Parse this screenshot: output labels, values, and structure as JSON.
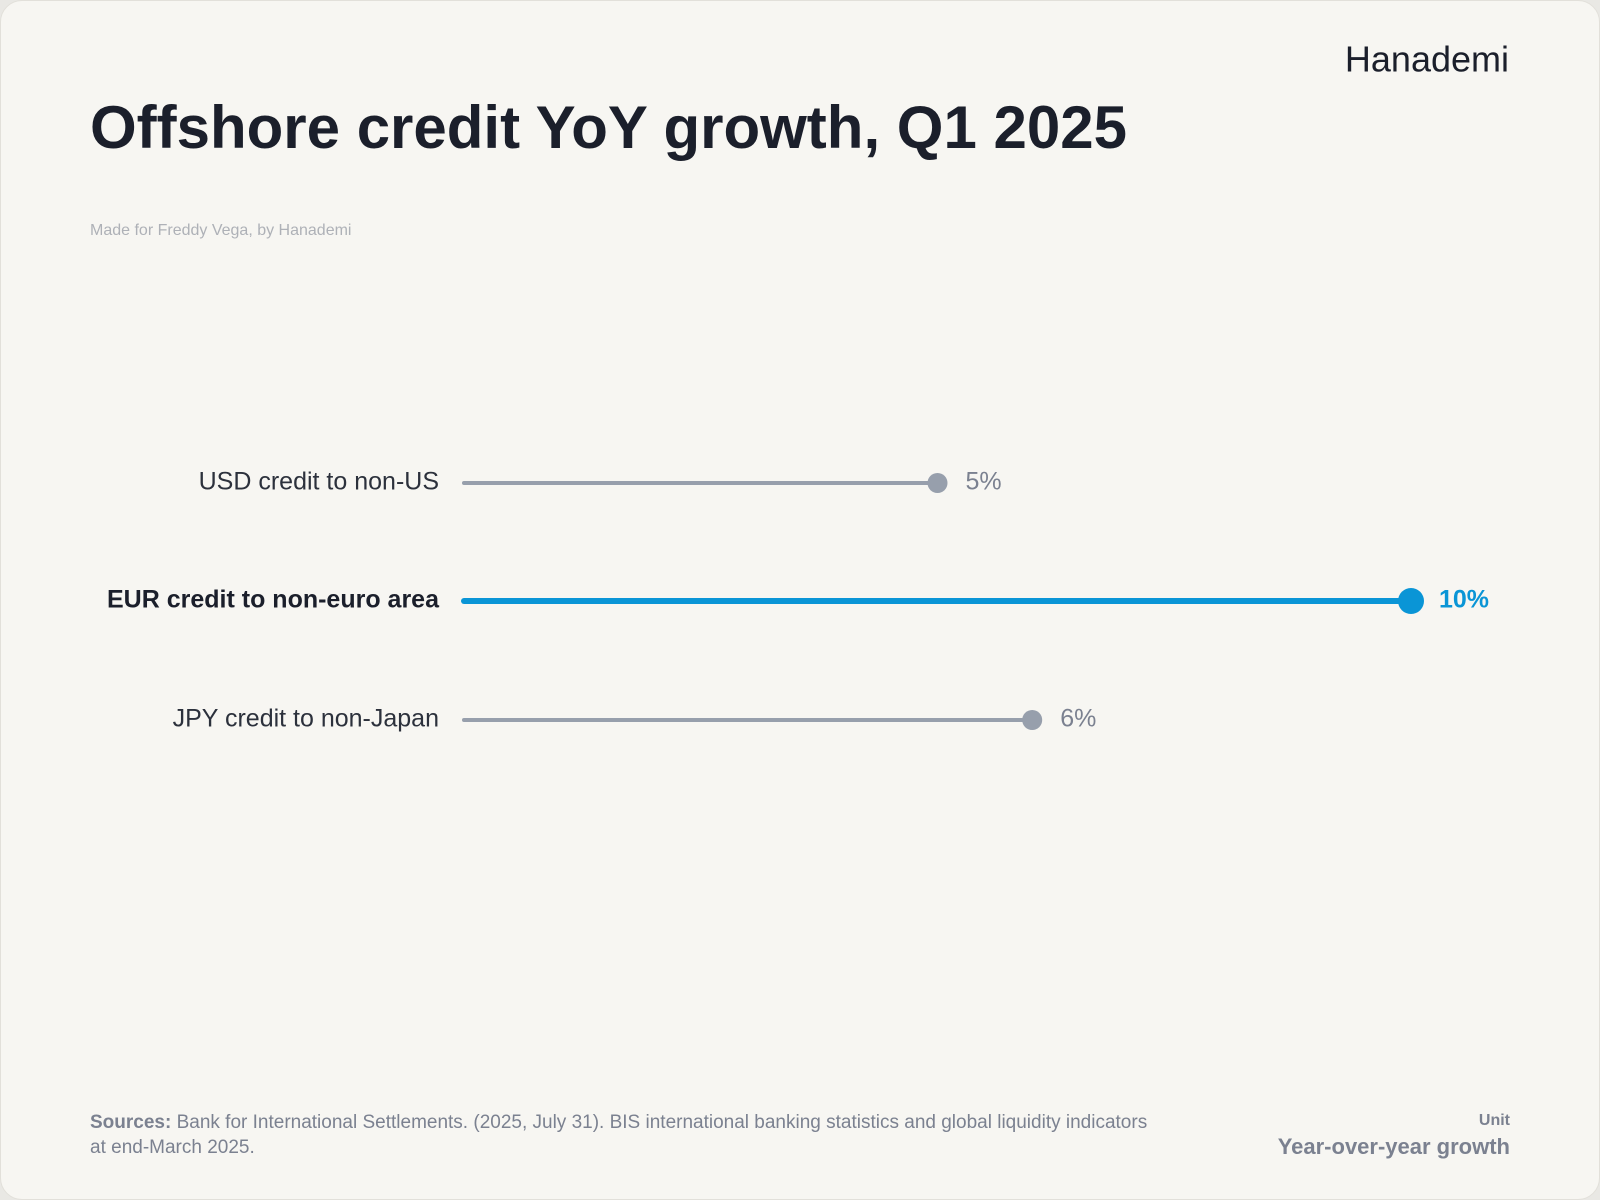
{
  "brand": "Hanademi",
  "chart_data": {
    "type": "lollipop",
    "title": "Offshore credit YoY growth, Q1 2025",
    "subtitle": "Made for Freddy Vega, by Hanademi",
    "categories": [
      "USD credit to non-US",
      "EUR credit to non-euro area",
      "JPY credit to non-Japan"
    ],
    "values": [
      5,
      10,
      6
    ],
    "value_labels": [
      "5%",
      "10%",
      "6%"
    ],
    "colors": [
      "#979fac",
      "#0a95d6",
      "#979fac"
    ],
    "highlight": 1
  },
  "footer": {
    "sources_label": "Sources:",
    "sources": "Bank for International Settlements. (2025, July 31). BIS international banking statistics and global liquidity indicators at end-March 2025.",
    "unit_label": "Unit",
    "unit": "Year-over-year growth"
  }
}
